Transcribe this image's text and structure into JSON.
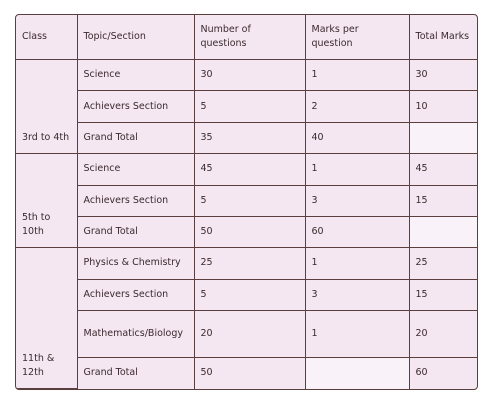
{
  "table": {
    "header": [
      "Class",
      "Topic/Section",
      "Number of questions",
      "Marks per question",
      "Total Marks"
    ],
    "groups": [
      {
        "class": "3rd to 4th",
        "rows": [
          [
            "Science",
            30,
            1,
            30
          ],
          [
            "Achievers Section",
            5,
            2,
            10
          ],
          [
            "Grand Total",
            35,
            40
          ]
        ]
      },
      {
        "class": "5th to 10th",
        "rows": [
          [
            "Science",
            45,
            1,
            45
          ],
          [
            "Achievers Section",
            5,
            3,
            15
          ],
          [
            "Grand Total",
            50,
            60
          ]
        ]
      },
      {
        "class": "11th & 12th",
        "rows": [
          [
            "Physics & Chemistry",
            25,
            1,
            25
          ],
          [
            "Achievers Section",
            5,
            3,
            15
          ],
          [
            "Mathematics/Biology",
            20,
            1,
            20
          ],
          [
            "Grand Total",
            50,
            null,
            60
          ]
        ]
      }
    ]
  }
}
